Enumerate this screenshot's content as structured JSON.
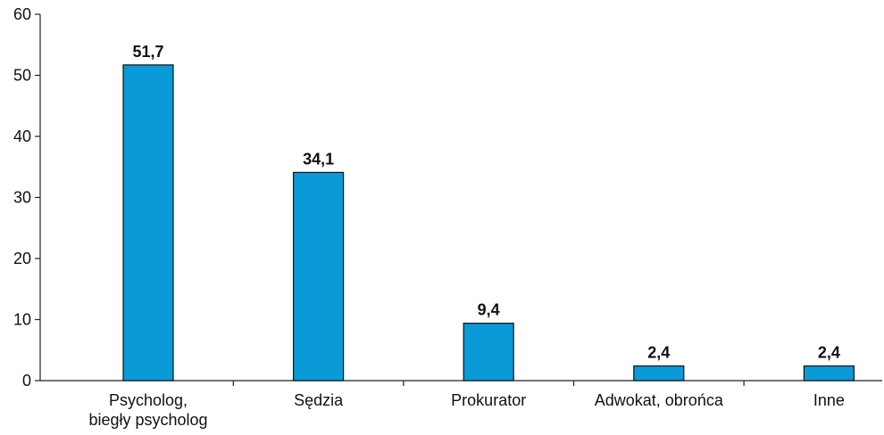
{
  "chart_data": {
    "type": "bar",
    "categories": [
      "Psycholog,\nbiegły psycholog",
      "Sędzia",
      "Prokurator",
      "Adwokat, obrońca",
      "Inne"
    ],
    "values": [
      51.7,
      34.1,
      9.4,
      2.4,
      2.4
    ],
    "value_labels": [
      "51,7",
      "34,1",
      "9,4",
      "2,4",
      "2,4"
    ],
    "color": "#0a9ad8",
    "ylim": [
      0,
      60
    ],
    "yticks": [
      0,
      10,
      20,
      30,
      40,
      50,
      60
    ],
    "grid": false
  }
}
